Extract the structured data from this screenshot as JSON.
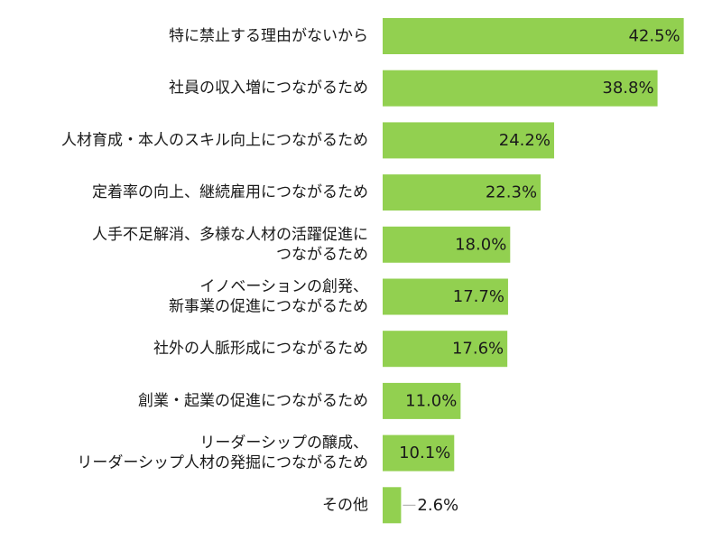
{
  "chart_data": {
    "type": "bar",
    "orientation": "horizontal",
    "title": "",
    "xlabel": "",
    "ylabel": "",
    "xlim": [
      0,
      45
    ],
    "grid": false,
    "legend": "none",
    "bar_color": "#92d050",
    "categories": [
      [
        "特に禁止する理由がないから"
      ],
      [
        "社員の収入増につながるため"
      ],
      [
        "人材育成・本人のスキル向上につながるため"
      ],
      [
        "定着率の向上、継続雇用につながるため"
      ],
      [
        "人手不足解消、多様な人材の活躍促進に",
        "つながるため"
      ],
      [
        "イノベーションの創発、",
        "新事業の促進につながるため"
      ],
      [
        "社外の人脈形成につながるため"
      ],
      [
        "創業・起業の促進につながるため"
      ],
      [
        "リーダーシップの醸成、",
        "リーダーシップ人材の発掘につながるため"
      ],
      [
        "その他"
      ]
    ],
    "values": [
      42.5,
      38.8,
      24.2,
      22.3,
      18.0,
      17.7,
      17.6,
      11.0,
      10.1,
      2.6
    ],
    "value_labels": [
      "42.5%",
      "38.8%",
      "24.2%",
      "22.3%",
      "18.0%",
      "17.7%",
      "17.6%",
      "11.0%",
      "10.1%",
      "2.6%"
    ]
  }
}
